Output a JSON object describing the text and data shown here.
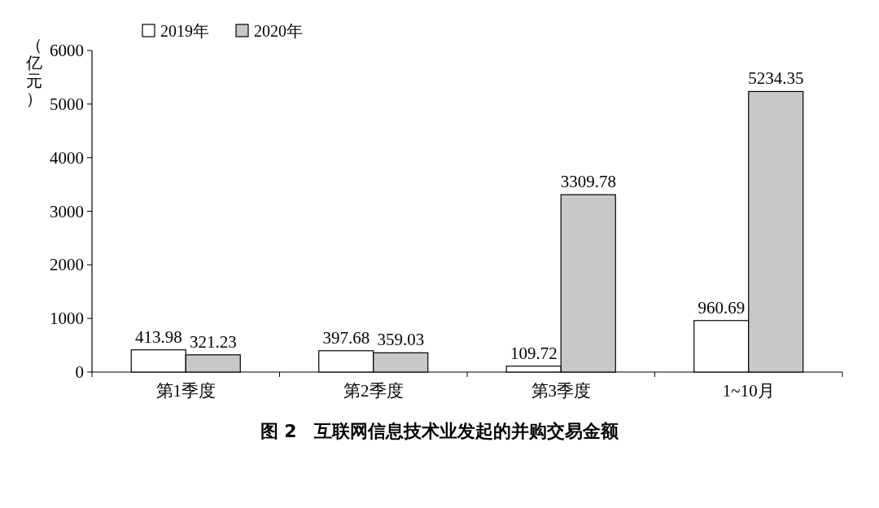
{
  "chart_data": {
    "type": "bar",
    "title": "图 2　互联网信息技术业发起的并购交易金额",
    "ylabel": "（亿元）",
    "categories": [
      "第1季度",
      "第2季度",
      "第3季度",
      "1~10月"
    ],
    "series": [
      {
        "name": "2019年",
        "color": "#ffffff",
        "values": [
          413.98,
          397.68,
          109.72,
          960.69
        ]
      },
      {
        "name": "2020年",
        "color": "#c8c8c8",
        "values": [
          321.23,
          359.03,
          3309.78,
          5234.35
        ]
      }
    ],
    "ylim": [
      0,
      6000
    ],
    "yticks": [
      0,
      1000,
      2000,
      3000,
      4000,
      5000,
      6000
    ],
    "data_labels": true,
    "legend": "top left",
    "grid": false
  }
}
